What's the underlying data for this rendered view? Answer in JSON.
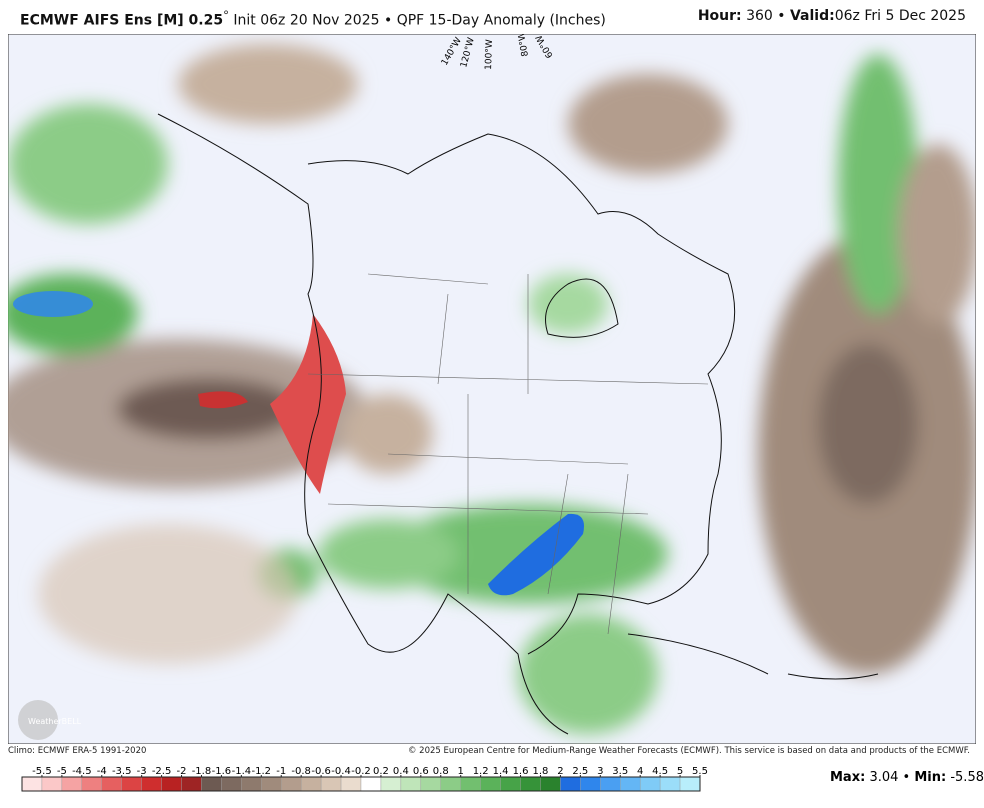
{
  "header": {
    "title": "ECMWF AIFS Ens [M] 0.25",
    "degree": "°",
    "init": "Init 06z 20 Nov 2025",
    "separator": "•",
    "product": "QPF 15-Day Anomaly (Inches)",
    "hour_label": "Hour:",
    "hour": "360",
    "valid_label": "Valid:",
    "valid": "06z Fri 5 Dec 2025"
  },
  "map": {
    "longitude_labels": [
      "140°W",
      "120°W",
      "100°W",
      "80°W",
      "60°W"
    ],
    "watermark": "WeatherBELL"
  },
  "footer": {
    "climo": "Climo: ECMWF ERA-5 1991-2020",
    "copyright": "© 2025 European Centre for Medium-Range Weather Forecasts (ECMWF). This service is based on data and products of the ECMWF."
  },
  "colorbar": {
    "ticks": [
      -5.5,
      -5,
      -4.5,
      -4,
      -3.5,
      -3,
      -2.5,
      -2,
      -1.8,
      -1.6,
      -1.4,
      -1.2,
      -1,
      -0.8,
      -0.6,
      -0.4,
      -0.2,
      0.2,
      0.4,
      0.6,
      0.8,
      1,
      1.2,
      1.4,
      1.6,
      1.8,
      2,
      2.5,
      3,
      3.5,
      4,
      4.5,
      5,
      5.5
    ],
    "colors": [
      "#fde3e3",
      "#fbc8c8",
      "#f5a3a3",
      "#ee8080",
      "#e66060",
      "#dc4444",
      "#cf2e2e",
      "#b82222",
      "#9e2424",
      "#6d5a52",
      "#7d6a60",
      "#8e7a6d",
      "#a08b7c",
      "#b39d8d",
      "#c6b19f",
      "#d9c6b5",
      "#eadcce",
      "#ffffff",
      "#d6efd2",
      "#bfe5b9",
      "#a6d9a0",
      "#8ccc87",
      "#72bf6f",
      "#5bb25a",
      "#47a348",
      "#369339",
      "#2a822d",
      "#1f6de0",
      "#2f86ec",
      "#4a9ff2",
      "#64b6f5",
      "#7fcbf7",
      "#9bddf9",
      "#b8eefb"
    ]
  },
  "stats": {
    "max_label": "Max:",
    "max": 3.04,
    "separator": "•",
    "min_label": "Min:",
    "min": -5.58
  }
}
